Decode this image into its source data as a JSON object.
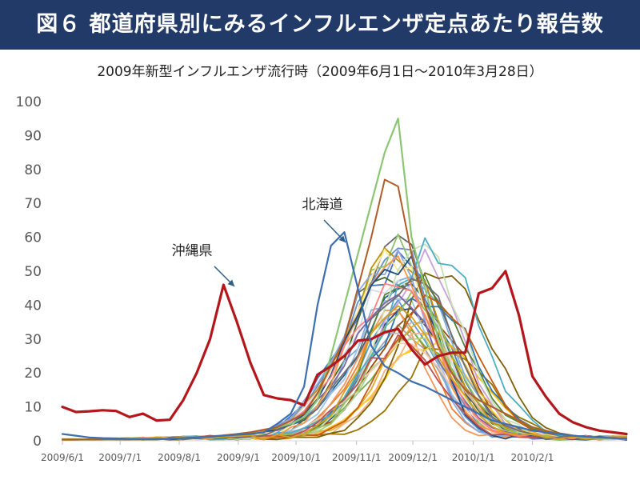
{
  "title": "図６ 都道府県別にみるインフルエンザ定点あたり報告数",
  "chart_data": {
    "type": "line",
    "subtitle": "2009年新型インフルエンザ流行時（2009年6月1日～2010年3月28日）",
    "ylim": [
      0,
      100
    ],
    "y_ticks": [
      "0",
      "10",
      "20",
      "30",
      "40",
      "50",
      "60",
      "70",
      "80",
      "90",
      "100"
    ],
    "x_ticks": [
      {
        "label": "2009/6/1",
        "week": 0
      },
      {
        "label": "2009/7/1",
        "week": 4.3
      },
      {
        "label": "2009/8/1",
        "week": 8.7
      },
      {
        "label": "2009/9/1",
        "week": 13.1
      },
      {
        "label": "2009/10/1",
        "week": 17.4
      },
      {
        "label": "2009/11/1",
        "week": 21.9
      },
      {
        "label": "2009/12/1",
        "week": 26.1
      },
      {
        "label": "2010/1/1",
        "week": 30.6
      },
      {
        "label": "2010/2/1",
        "week": 35.0
      }
    ],
    "week_count": 43,
    "grid": false,
    "legend": "none",
    "annotations": [
      {
        "text": "沖縄県",
        "series": "沖縄県",
        "week": 9.7,
        "value": 46
      },
      {
        "text": "北海道",
        "series": "北海道",
        "week": 20.2,
        "value": 58
      }
    ],
    "series": [
      {
        "name": "沖縄県",
        "color": "#b3171c",
        "width": 3.2,
        "values": [
          10,
          8.5,
          8.7,
          9,
          8.8,
          7,
          8,
          6,
          6.2,
          12,
          20,
          30,
          46,
          35,
          23,
          13.5,
          12.5,
          12,
          10.5,
          19.5,
          22,
          25,
          29.5,
          30,
          32,
          33,
          27,
          22.5,
          25,
          26,
          26,
          43.5,
          45,
          50,
          37,
          19,
          13,
          8,
          5.5,
          4,
          3,
          2.5,
          2
        ]
      },
      {
        "name": "北海道",
        "color": "#3d6fb0",
        "width": 2.2,
        "values": [
          2,
          1.5,
          1,
          0.8,
          0.7,
          0.5,
          0.5,
          0.5,
          0.6,
          0.8,
          1,
          1.2,
          1.5,
          1.8,
          2,
          2.5,
          5,
          8,
          16,
          40,
          57.5,
          61.5,
          45,
          28,
          22,
          20,
          17.5,
          16,
          14,
          12,
          10,
          8,
          6,
          5,
          4,
          3,
          2.5,
          2,
          1.5,
          1.2,
          1,
          0.8,
          0.6
        ]
      },
      {
        "values": [
          0.5,
          0.5,
          0.4,
          0.4,
          0.4,
          0.4,
          0.4,
          0.5,
          0.6,
          0.8,
          1,
          1.2,
          1.5,
          2,
          2.5,
          3,
          4,
          5,
          7,
          12,
          25,
          40,
          55,
          70,
          85,
          95,
          60,
          45,
          30,
          20,
          15,
          12,
          10,
          8,
          6,
          4,
          3,
          2,
          1.5,
          1,
          0.8,
          0.6,
          0.5
        ],
        "color": "#8cc673",
        "width": 2.2
      },
      {
        "values": [
          0.4,
          0.4,
          0.4,
          0.4,
          0.4,
          0.4,
          0.4,
          0.5,
          0.6,
          0.8,
          1,
          1.3,
          1.6,
          2,
          2.5,
          3.2,
          4,
          6,
          8,
          14,
          22,
          30,
          45,
          60,
          77,
          75,
          55,
          40,
          28,
          20,
          15,
          12,
          10,
          8,
          6,
          4,
          3,
          2,
          1.5,
          1.2,
          1,
          0.8,
          0.6
        ],
        "color": "#b05c26",
        "width": 2
      }
    ]
  }
}
